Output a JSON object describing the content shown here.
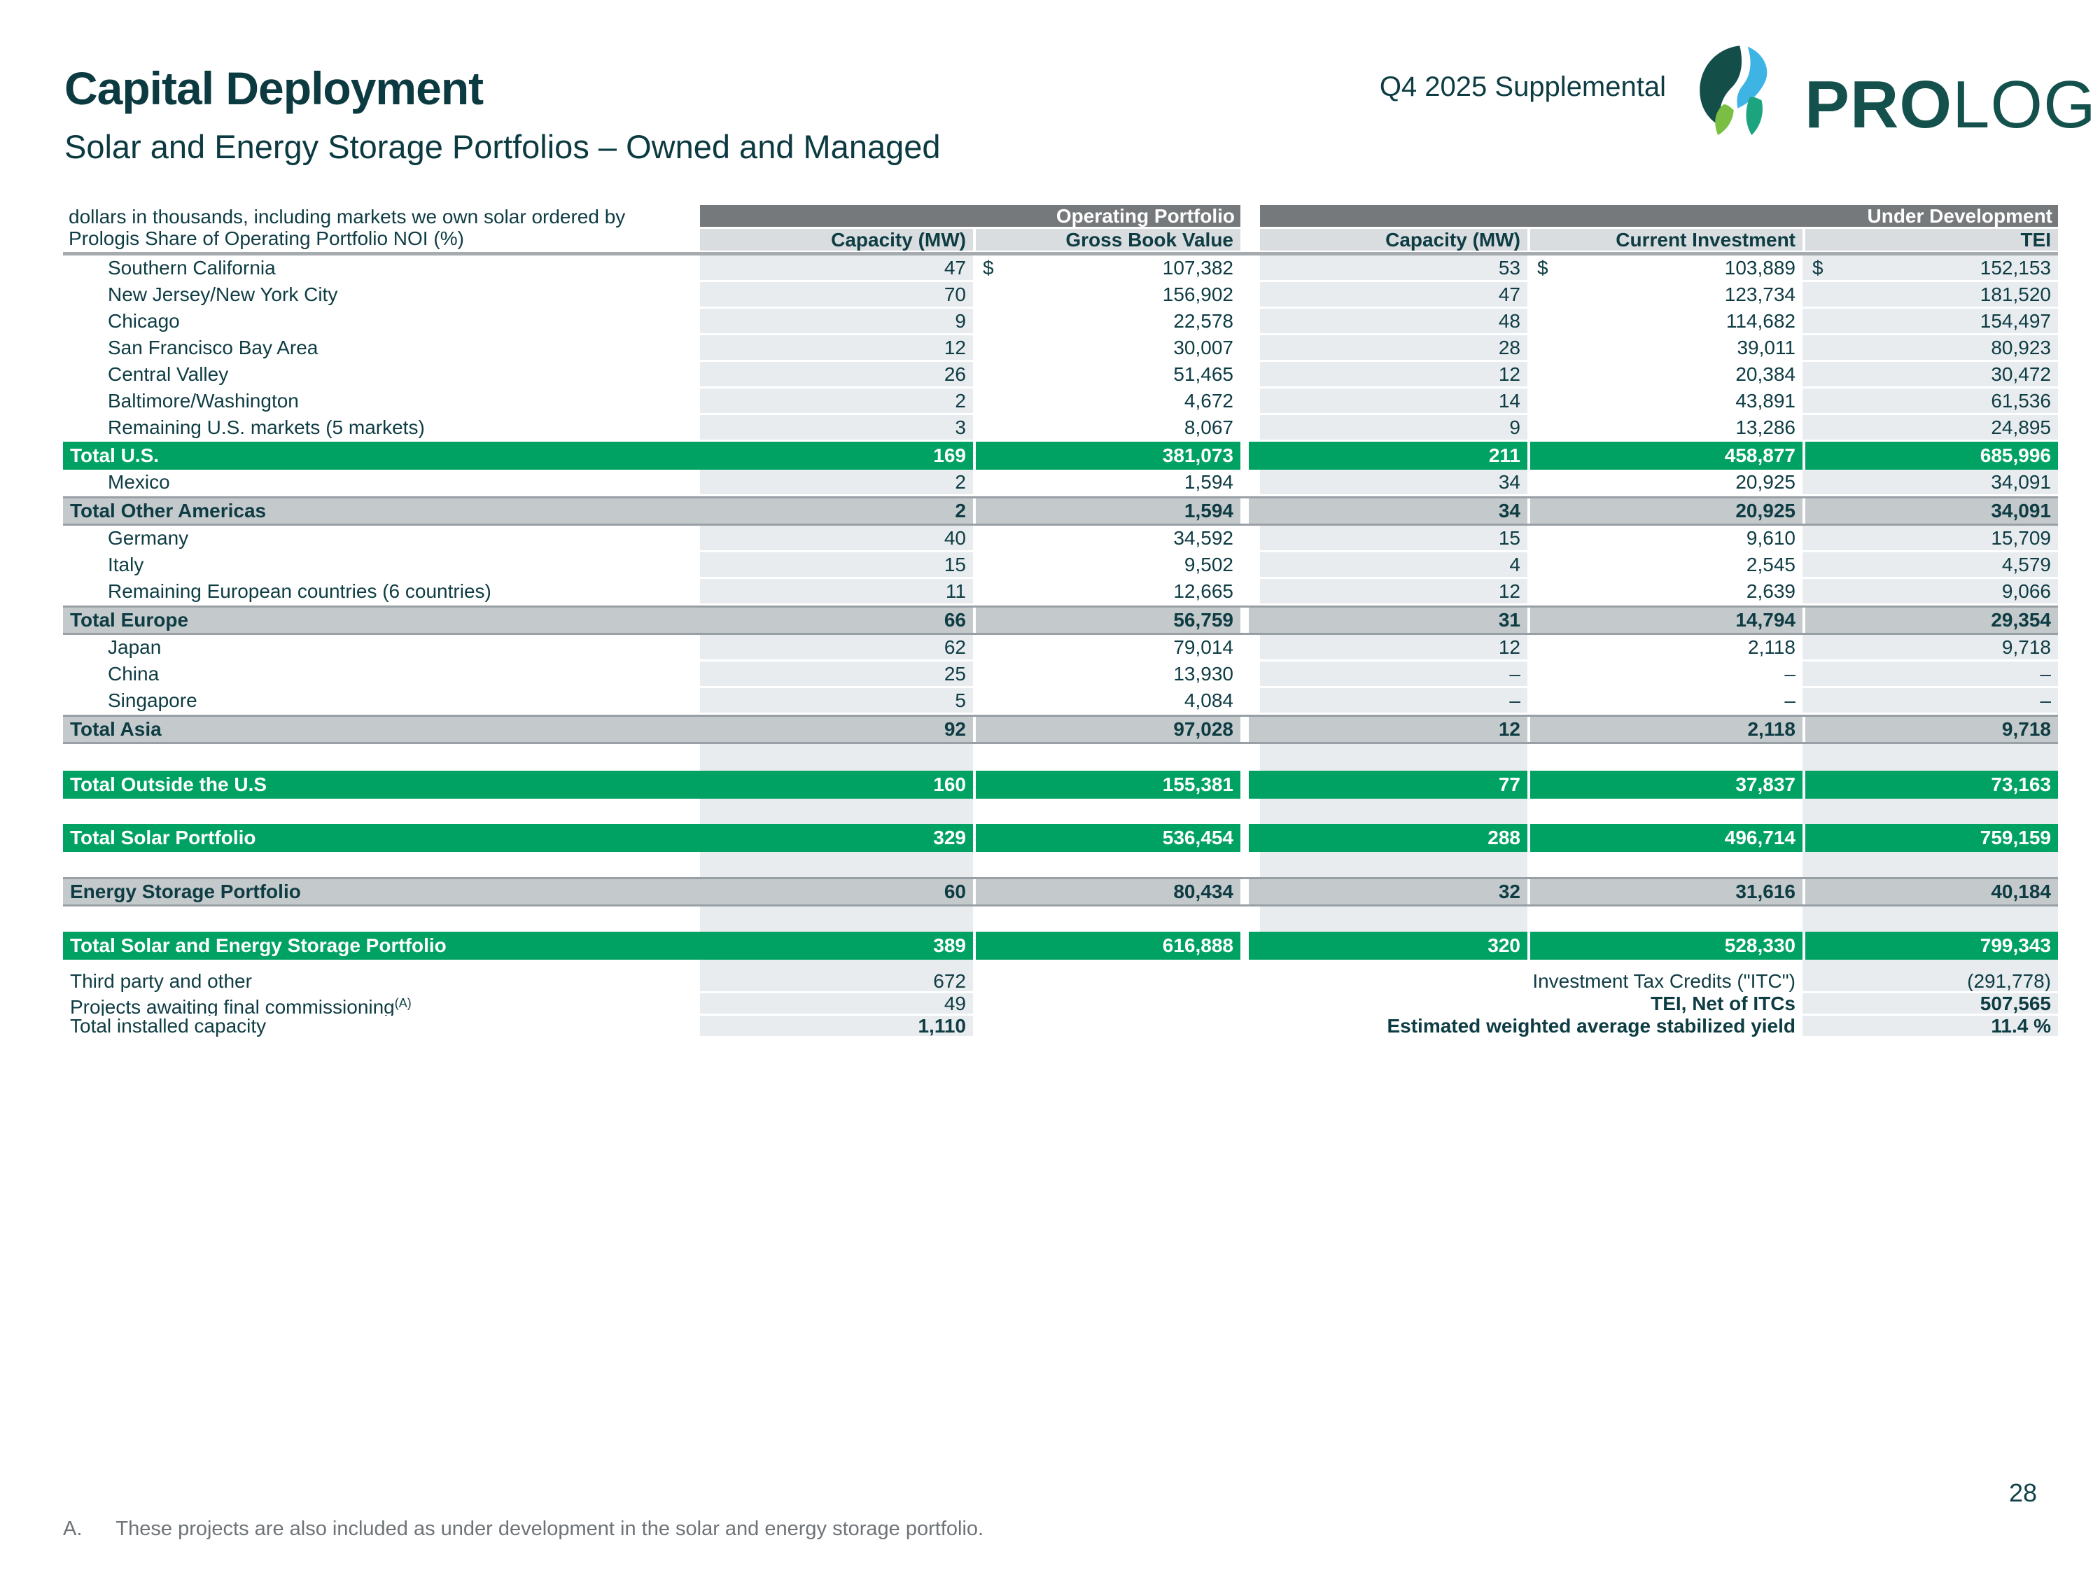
{
  "header": {
    "title": "Capital Deployment",
    "subtitle": "Solar and Energy Storage Portfolios – Owned and Managed",
    "supplemental": "Q4 2025 Supplemental",
    "brand_bold": "PRO",
    "brand_regular": "LOGIS",
    "brand_registered": "®"
  },
  "colors": {
    "accent_green": "#00a263",
    "band_gray": "#75797b",
    "subtotal_gray": "#c4c9cc",
    "light_column": "#e8ecef",
    "header_cell": "#d9dde0",
    "teal_text": "#0e3c43"
  },
  "table": {
    "note_line1": "dollars in thousands, including markets we own solar ordered by",
    "note_line2": "Prologis Share of Operating Portfolio NOI (%)",
    "section1_label": "Operating Portfolio",
    "section2_label": "Under Development",
    "col_cap1": "Capacity (MW)",
    "col_gbv": "Gross Book Value",
    "col_cap2": "Capacity (MW)",
    "col_ci": "Current Investment",
    "col_tei": "TEI",
    "currency_symbol": "$",
    "rows": [
      {
        "type": "market",
        "label": "Southern California",
        "cap1": "47",
        "gbv": "107,382",
        "cap2": "53",
        "ci": "103,889",
        "tei": "152,153",
        "dollar": true
      },
      {
        "type": "market",
        "label": "New Jersey/New York City",
        "cap1": "70",
        "gbv": "156,902",
        "cap2": "47",
        "ci": "123,734",
        "tei": "181,520"
      },
      {
        "type": "market",
        "label": "Chicago",
        "cap1": "9",
        "gbv": "22,578",
        "cap2": "48",
        "ci": "114,682",
        "tei": "154,497"
      },
      {
        "type": "market",
        "label": "San Francisco Bay Area",
        "cap1": "12",
        "gbv": "30,007",
        "cap2": "28",
        "ci": "39,011",
        "tei": "80,923"
      },
      {
        "type": "market",
        "label": "Central Valley",
        "cap1": "26",
        "gbv": "51,465",
        "cap2": "12",
        "ci": "20,384",
        "tei": "30,472"
      },
      {
        "type": "market",
        "label": "Baltimore/Washington",
        "cap1": "2",
        "gbv": "4,672",
        "cap2": "14",
        "ci": "43,891",
        "tei": "61,536"
      },
      {
        "type": "market",
        "label": "Remaining U.S. markets (5 markets)",
        "cap1": "3",
        "gbv": "8,067",
        "cap2": "9",
        "ci": "13,286",
        "tei": "24,895"
      },
      {
        "type": "green",
        "label": "Total U.S.",
        "cap1": "169",
        "gbv": "381,073",
        "cap2": "211",
        "ci": "458,877",
        "tei": "685,996"
      },
      {
        "type": "market",
        "label": "Mexico",
        "cap1": "2",
        "gbv": "1,594",
        "cap2": "34",
        "ci": "20,925",
        "tei": "34,091"
      },
      {
        "type": "gray",
        "label": "Total Other Americas",
        "cap1": "2",
        "gbv": "1,594",
        "cap2": "34",
        "ci": "20,925",
        "tei": "34,091"
      },
      {
        "type": "market",
        "label": "Germany",
        "cap1": "40",
        "gbv": "34,592",
        "cap2": "15",
        "ci": "9,610",
        "tei": "15,709"
      },
      {
        "type": "market",
        "label": "Italy",
        "cap1": "15",
        "gbv": "9,502",
        "cap2": "4",
        "ci": "2,545",
        "tei": "4,579"
      },
      {
        "type": "market",
        "label": "Remaining European countries (6 countries)",
        "cap1": "11",
        "gbv": "12,665",
        "cap2": "12",
        "ci": "2,639",
        "tei": "9,066"
      },
      {
        "type": "gray",
        "label": "Total Europe",
        "cap1": "66",
        "gbv": "56,759",
        "cap2": "31",
        "ci": "14,794",
        "tei": "29,354"
      },
      {
        "type": "market",
        "label": "Japan",
        "cap1": "62",
        "gbv": "79,014",
        "cap2": "12",
        "ci": "2,118",
        "tei": "9,718"
      },
      {
        "type": "market",
        "label": "China",
        "cap1": "25",
        "gbv": "13,930",
        "cap2": "–",
        "ci": "–",
        "tei": "–"
      },
      {
        "type": "market",
        "label": "Singapore",
        "cap1": "5",
        "gbv": "4,084",
        "cap2": "–",
        "ci": "–",
        "tei": "–"
      },
      {
        "type": "gray",
        "label": "Total Asia",
        "cap1": "92",
        "gbv": "97,028",
        "cap2": "12",
        "ci": "2,118",
        "tei": "9,718"
      },
      {
        "type": "spacer",
        "height": 38,
        "lights": [
          "cap1",
          "cap2",
          "tei"
        ]
      },
      {
        "type": "green",
        "label": "Total Outside the U.S",
        "cap1": "160",
        "gbv": "155,381",
        "cap2": "77",
        "ci": "37,837",
        "tei": "73,163"
      },
      {
        "type": "spacer",
        "height": 36,
        "lights": [
          "cap1",
          "cap2",
          "tei"
        ]
      },
      {
        "type": "green",
        "label": "Total Solar Portfolio",
        "cap1": "329",
        "gbv": "536,454",
        "cap2": "288",
        "ci": "496,714",
        "tei": "759,159"
      },
      {
        "type": "spacer",
        "height": 36,
        "lights": [
          "cap1",
          "cap2",
          "tei"
        ]
      },
      {
        "type": "gray",
        "label": "Energy Storage Portfolio",
        "cap1": "60",
        "gbv": "80,434",
        "cap2": "32",
        "ci": "31,616",
        "tei": "40,184"
      },
      {
        "type": "spacer",
        "height": 36,
        "lights": [
          "cap1",
          "cap2",
          "tei"
        ]
      },
      {
        "type": "green",
        "label": "Total Solar and Energy Storage Portfolio",
        "cap1": "389",
        "gbv": "616,888",
        "cap2": "320",
        "ci": "528,330",
        "tei": "799,343"
      },
      {
        "type": "spacer",
        "height": 16,
        "lights": [
          "cap1",
          "tei"
        ]
      }
    ],
    "bottom_rows": [
      {
        "left_label": "Third party and other",
        "left_sup": "",
        "left_value": "672",
        "left_bold": false,
        "right_label": "Investment Tax Credits (\"ITC\")",
        "right_bold": false,
        "right_value": "(291,778)"
      },
      {
        "left_label": "Projects awaiting final commissioning",
        "left_sup": "(A)",
        "left_value": "49",
        "left_bold": false,
        "right_label": "TEI, Net of ITCs",
        "right_bold": true,
        "right_value": "507,565"
      },
      {
        "left_label": "Total installed capacity",
        "left_sup": "",
        "left_value": "1,110",
        "left_bold": true,
        "right_label": "Estimated weighted average stabilized yield",
        "right_bold": true,
        "right_value": "11.4 %"
      }
    ]
  },
  "footnote": {
    "marker": "A.",
    "text": "These projects are also included as under development in the solar and energy storage portfolio."
  },
  "page_number": "28"
}
